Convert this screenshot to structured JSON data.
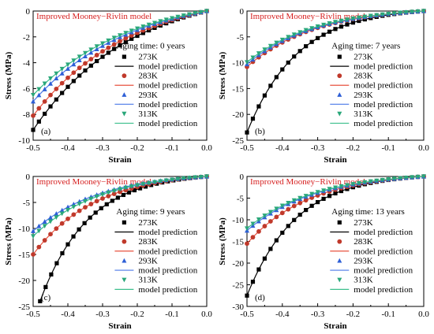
{
  "figure": {
    "colors": {
      "273K": "#000000",
      "283K": "#c0392b",
      "293K": "#2e5fd6",
      "313K": "#2aa77a",
      "model_273K": "#000000",
      "model_283K": "#e8533f",
      "model_293K": "#4a78e8",
      "model_313K": "#3cbf8c",
      "title_red": "#d62020",
      "axis": "#000000"
    }
  },
  "chart_data": [
    {
      "type": "scatter",
      "panel_label": "(a)",
      "title": "Improved Mooney−Rivlin model",
      "annotation": "Aging time: 0 years",
      "xlabel": "Strain",
      "ylabel": "Stress (MPa)",
      "xlim": [
        -0.5,
        0.0
      ],
      "ylim": [
        -10,
        0
      ],
      "xticks": [
        "-0.5",
        "-0.4",
        "-0.3",
        "-0.2",
        "-0.1",
        "0.0"
      ],
      "yticks": [
        "0",
        "-2",
        "-4",
        "-6",
        "-8",
        "-10"
      ],
      "legend_position": "right-middle",
      "legend": [
        "273K",
        "model prediction",
        "283K",
        "model prediction",
        "293K",
        "model prediction",
        "313K",
        "model prediction"
      ],
      "series": [
        {
          "name": "273K",
          "color_key": "273K",
          "marker": "square",
          "x_range": [
            -0.5,
            0.0
          ],
          "end_value": -9.2,
          "curvature": 1.8
        },
        {
          "name": "283K",
          "color_key": "283K",
          "marker": "circle",
          "x_range": [
            -0.5,
            0.0
          ],
          "end_value": -8.1,
          "curvature": 1.8
        },
        {
          "name": "293K",
          "color_key": "293K",
          "marker": "triangle-up",
          "x_range": [
            -0.5,
            0.0
          ],
          "end_value": -7.0,
          "curvature": 1.8
        },
        {
          "name": "313K",
          "color_key": "313K",
          "marker": "triangle-down",
          "x_range": [
            -0.5,
            0.0
          ],
          "end_value": -6.5,
          "curvature": 1.8
        }
      ]
    },
    {
      "type": "scatter",
      "panel_label": "(b)",
      "title": "Improved Mooney−Rivlin model",
      "annotation": "Aging time: 7 years",
      "xlabel": "Strain",
      "ylabel": "Stress (MPa)",
      "xlim": [
        -0.5,
        0.0
      ],
      "ylim": [
        -25,
        0
      ],
      "xticks": [
        "-0.5",
        "-0.4",
        "-0.3",
        "-0.2",
        "-0.1",
        "0.0"
      ],
      "yticks": [
        "0",
        "-5",
        "-10",
        "-15",
        "-20",
        "-25"
      ],
      "legend_position": "right-middle",
      "legend": [
        "273K",
        "model prediction",
        "283K",
        "model prediction",
        "293K",
        "model prediction",
        "313K",
        "model prediction"
      ],
      "series": [
        {
          "name": "273K",
          "color_key": "273K",
          "marker": "square",
          "x_range": [
            -0.5,
            0.0
          ],
          "end_value": -23.5,
          "curvature": 3.5
        },
        {
          "name": "283K",
          "color_key": "283K",
          "marker": "circle",
          "x_range": [
            -0.5,
            0.0
          ],
          "end_value": -10.8,
          "curvature": 2.6
        },
        {
          "name": "293K",
          "color_key": "293K",
          "marker": "triangle-up",
          "x_range": [
            -0.5,
            0.0
          ],
          "end_value": -10.3,
          "curvature": 2.6
        },
        {
          "name": "313K",
          "color_key": "313K",
          "marker": "triangle-down",
          "x_range": [
            -0.5,
            0.0
          ],
          "end_value": -9.9,
          "curvature": 2.6
        }
      ]
    },
    {
      "type": "scatter",
      "panel_label": "(c)",
      "title": "Improved Mooney−Rivlin model",
      "annotation": "Aging time: 9 years",
      "xlabel": "Strain",
      "ylabel": "Stress (MPa)",
      "xlim": [
        -0.5,
        0.0
      ],
      "ylim": [
        -25,
        0
      ],
      "xticks": [
        "-0.5",
        "-0.4",
        "-0.3",
        "-0.2",
        "-0.1",
        "0.0"
      ],
      "yticks": [
        "0",
        "-5",
        "-10",
        "-15",
        "-20",
        "-25"
      ],
      "legend_position": "right-middle",
      "legend": [
        "273K",
        "model prediction",
        "283K",
        "model prediction",
        "293K",
        "model prediction",
        "313K",
        "model prediction"
      ],
      "series": [
        {
          "name": "273K",
          "color_key": "273K",
          "marker": "square",
          "x_range": [
            -0.48,
            0.0
          ],
          "end_value": -24.0,
          "curvature": 3.5
        },
        {
          "name": "283K",
          "color_key": "283K",
          "marker": "circle",
          "x_range": [
            -0.5,
            0.0
          ],
          "end_value": -15.0,
          "curvature": 2.8
        },
        {
          "name": "293K",
          "color_key": "293K",
          "marker": "triangle-up",
          "x_range": [
            -0.5,
            0.0
          ],
          "end_value": -10.5,
          "curvature": 2.6
        },
        {
          "name": "313K",
          "color_key": "313K",
          "marker": "triangle-down",
          "x_range": [
            -0.5,
            0.0
          ],
          "end_value": -11.5,
          "curvature": 2.6
        }
      ]
    },
    {
      "type": "scatter",
      "panel_label": "(d)",
      "title": "Improved Mooney−Rivlin model",
      "annotation": "Aging time: 13 years",
      "xlabel": "Strain",
      "ylabel": "Stress (MPa)",
      "xlim": [
        -0.5,
        0.0
      ],
      "ylim": [
        -30,
        0
      ],
      "xticks": [
        "-0.5",
        "-0.4",
        "-0.3",
        "-0.2",
        "-0.1",
        "0.0"
      ],
      "yticks": [
        "0",
        "-5",
        "-10",
        "-15",
        "-20",
        "-25",
        "-30"
      ],
      "legend_position": "right-middle",
      "legend": [
        "273K",
        "model prediction",
        "283K",
        "model prediction",
        "293K",
        "model prediction",
        "313K",
        "model prediction"
      ],
      "series": [
        {
          "name": "273K",
          "color_key": "273K",
          "marker": "square",
          "x_range": [
            -0.5,
            0.0
          ],
          "end_value": -27.5,
          "curvature": 3.6
        },
        {
          "name": "283K",
          "color_key": "283K",
          "marker": "circle",
          "x_range": [
            -0.5,
            0.0
          ],
          "end_value": -15.5,
          "curvature": 2.8
        },
        {
          "name": "293K",
          "color_key": "293K",
          "marker": "triangle-up",
          "x_range": [
            -0.5,
            0.0
          ],
          "end_value": -12.5,
          "curvature": 2.6
        },
        {
          "name": "313K",
          "color_key": "313K",
          "marker": "triangle-down",
          "x_range": [
            -0.5,
            0.0
          ],
          "end_value": -12.0,
          "curvature": 2.6
        }
      ]
    }
  ]
}
